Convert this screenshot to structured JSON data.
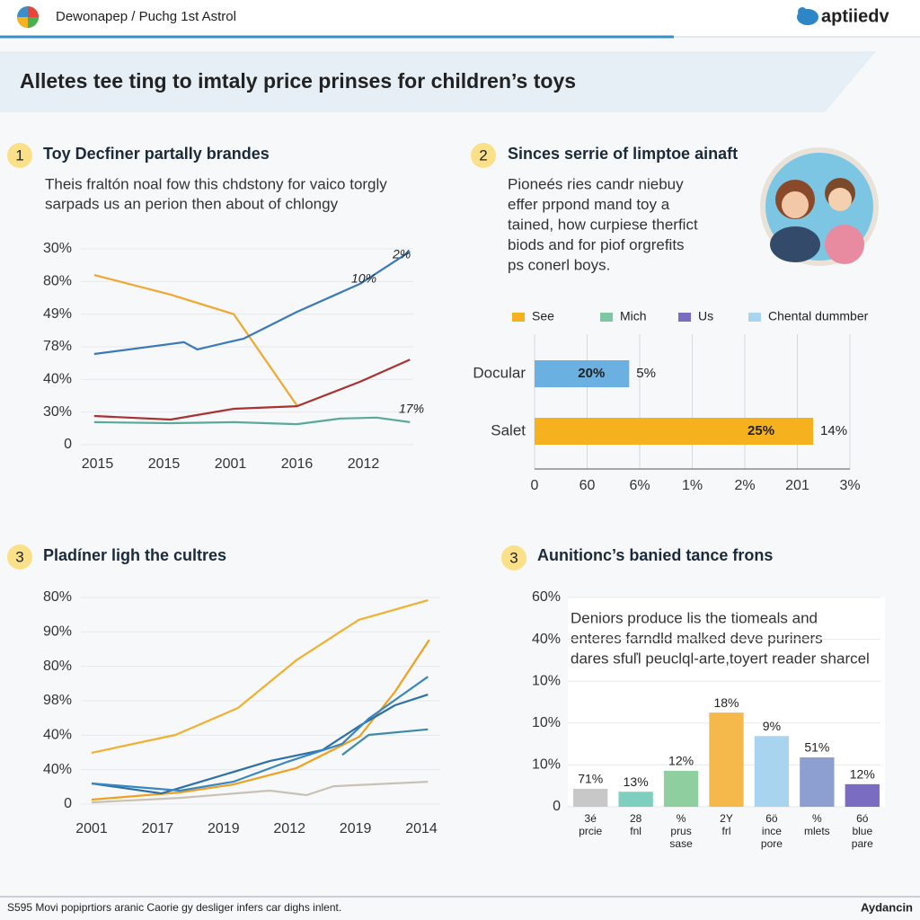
{
  "header": {
    "breadcrumb": "Dewonapep / Puchg 1st Astrol",
    "logo": "aptiiedv"
  },
  "banner": {
    "title": "Alletes tee ting to imtaly price prinses for children’s toys"
  },
  "chart_data": [
    {
      "type": "line",
      "number": 1,
      "title": "Toy Decfiner partally brandes",
      "description": [
        "Theis fraltón noal fow this chdstony for vaico torgly",
        "sarpads us an perion then about of chlongy"
      ],
      "xlim": [
        0,
        10
      ],
      "xticks": [
        {
          "value": 0.5,
          "label": "2015"
        },
        {
          "value": 2.5,
          "label": "2015"
        },
        {
          "value": 4.5,
          "label": "2001"
        },
        {
          "value": 6.5,
          "label": "2016"
        },
        {
          "value": 8.5,
          "label": "2012"
        }
      ],
      "ylim": [
        0,
        60
      ],
      "yticks": [
        0,
        {
          "value": 10,
          "label": "30%"
        },
        {
          "value": 20,
          "label": "40%"
        },
        {
          "value": 30,
          "label": "78%"
        },
        {
          "value": 40,
          "label": "49%"
        },
        {
          "value": 50,
          "label": "80%"
        },
        {
          "value": 60,
          "label": "30%"
        }
      ],
      "grid": true,
      "series": [
        {
          "color": "#f0a830",
          "x": [
            0.4,
            2.7,
            4.6,
            6.5
          ],
          "values": [
            52,
            46,
            40,
            12
          ]
        },
        {
          "color": "#3a7ab8",
          "x": [
            0.4,
            3.1,
            3.5,
            4.9,
            6.5,
            8.4,
            9.9
          ],
          "values": [
            27.8,
            31.4,
            29.2,
            32.5,
            40.7,
            49.3,
            59.2
          ]
        },
        {
          "color": "#a83232",
          "x": [
            0.4,
            2.7,
            4.6,
            6.5,
            8.4,
            9.9
          ],
          "values": [
            8.8,
            7.7,
            11,
            11.8,
            19.3,
            26.1
          ]
        },
        {
          "color": "#5aaa9a",
          "x": [
            0.4,
            2.7,
            4.6,
            6.5,
            7.8,
            8.9,
            9.9
          ],
          "values": [
            6.9,
            6.6,
            6.9,
            6.3,
            8,
            8.3,
            6.9
          ]
        }
      ],
      "annotations": [
        "2%",
        "10%",
        "17%"
      ]
    },
    {
      "type": "hbar",
      "number": 2,
      "title": "Sinces serrie of limptoe ainaft",
      "description": [
        "Pioneés ries candr niebuy",
        "effer prpond mand toy a",
        "tained, how curpiese therfict",
        "biods and for piof orgrefits",
        "ps conerl boys."
      ],
      "legend": [
        {
          "name": "See",
          "color": "#f5b21e"
        },
        {
          "name": "Mich",
          "color": "#7fc6a4"
        },
        {
          "name": "Us",
          "color": "#7a6cc0"
        },
        {
          "name": "Chental dummber",
          "color": "#a8d4ef"
        }
      ],
      "categories": [
        "Docular",
        "Salet"
      ],
      "values": [
        1.8,
        5.3
      ],
      "colors": [
        "#6ab0e0",
        "#f5b21e"
      ],
      "inner_labels": [
        "20%",
        "25%"
      ],
      "outer_labels": [
        "5%",
        "14%"
      ],
      "xlim": [
        0,
        6
      ],
      "xticks": [
        0,
        {
          "value": 1,
          "label": "60"
        },
        {
          "value": 2,
          "label": "6%"
        },
        {
          "value": 3,
          "label": "1%"
        },
        {
          "value": 4,
          "label": "2%"
        },
        {
          "value": 5,
          "label": "201"
        },
        {
          "value": 6,
          "label": "3%"
        }
      ],
      "grid": true
    },
    {
      "type": "line",
      "number": 3,
      "title": "Pladíner ligh the cultres",
      "xlim": [
        0,
        5
      ],
      "xticks": [
        {
          "value": 0,
          "label": "2001"
        },
        {
          "value": 1,
          "label": "2017"
        },
        {
          "value": 2,
          "label": "2019"
        },
        {
          "value": 3,
          "label": "2012"
        },
        {
          "value": 4,
          "label": "2019"
        },
        {
          "value": 5,
          "label": "2014"
        }
      ],
      "ylim": [
        0,
        60
      ],
      "yticks": [
        0,
        {
          "value": 10,
          "label": "40%"
        },
        {
          "value": 20,
          "label": "40%"
        },
        {
          "value": 30,
          "label": "98%"
        },
        {
          "value": 40,
          "label": "80%"
        },
        {
          "value": 50,
          "label": "90%"
        },
        {
          "value": 60,
          "label": "80%"
        }
      ],
      "grid": true,
      "series": [
        {
          "color": "#f0b030",
          "x": [
            0,
            1.27,
            2.22,
            3.1,
            4.05,
            5.1
          ],
          "values": [
            14.9,
            20.1,
            27.9,
            41.7,
            53.5,
            59.2
          ]
        },
        {
          "color": "#f0a020",
          "x": [
            0,
            1.34,
            2.15,
            3.1,
            4.06,
            4.6,
            5.12
          ],
          "values": [
            1.3,
            3.4,
            5.7,
            10.4,
            19.6,
            32.6,
            47.7
          ]
        },
        {
          "color": "#2f6fa8",
          "x": [
            0,
            1.06,
            1.74,
            2.7,
            3.5,
            4.06,
            4.6,
            5.1
          ],
          "values": [
            6,
            3.1,
            7,
            12.5,
            15.7,
            22.7,
            28.7,
            31.8
          ]
        },
        {
          "color": "#3a86c0",
          "x": [
            0,
            1.34,
            2.15,
            2.97,
            3.8,
            4.2,
            5.1
          ],
          "values": [
            6,
            3.9,
            6.5,
            12.3,
            17.5,
            24.8,
            37
          ]
        },
        {
          "color": "#3f8aa8",
          "x": [
            3.8,
            4.2,
            5.1
          ],
          "values": [
            14.3,
            20.1,
            21.7
          ]
        },
        {
          "color": "#c9c2b4",
          "x": [
            0,
            1.34,
            2.7,
            3.26,
            3.67,
            5.1
          ],
          "values": [
            0.5,
            1.8,
            3.9,
            2.6,
            5.2,
            6.5
          ]
        }
      ]
    },
    {
      "type": "bar",
      "number": 3,
      "title": "Aunitionc’s banied tance frons",
      "description": [
        "Deniors produce lis the tiomeals and",
        "enteres farndld malked deve puriners",
        "dares sfuľl peuclql-arte,toyert reader sharcel"
      ],
      "categories": [
        [
          "3é",
          "prcie"
        ],
        [
          "28",
          "fnl"
        ],
        [
          "%",
          "prus",
          "sase"
        ],
        [
          "2Y",
          "frl"
        ],
        [
          "6ö",
          "ince",
          "pore"
        ],
        [
          "%",
          "mlets"
        ],
        [
          "6ó",
          "blue",
          "pare"
        ]
      ],
      "values": [
        4.3,
        3.6,
        8.6,
        22.5,
        16.9,
        11.8,
        5.4
      ],
      "colors": [
        "#c8c8c8",
        "#7fcfc0",
        "#8fcf9f",
        "#f5b84a",
        "#a8d4ef",
        "#8c9fd0",
        "#7a6cc0"
      ],
      "bar_labels": [
        "71%",
        "13%",
        "12%",
        "18%",
        "9%",
        "51%",
        "12%"
      ],
      "ylim": [
        0,
        50
      ],
      "yticks": [
        0,
        {
          "value": 10,
          "label": "10%"
        },
        {
          "value": 20,
          "label": "10%"
        },
        {
          "value": 30,
          "label": "10%"
        },
        {
          "value": 40,
          "label": "40%"
        },
        {
          "value": 50,
          "label": "60%"
        }
      ],
      "grid": true
    }
  ],
  "footer": {
    "text": "S595 Movi popiprtiors aranic Caorie gy desliger infers car dighs inlent.",
    "brand": "Aydancin"
  }
}
